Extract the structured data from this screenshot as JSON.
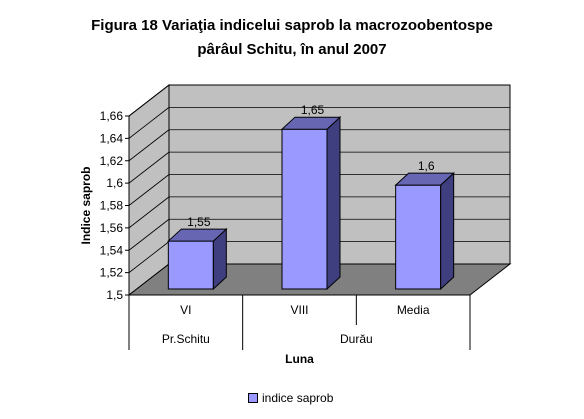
{
  "title_line1": "Figura 18  Variaţia indicelui saprob la macrozoobentospe",
  "title_line2": "pârâul Schitu, în anul 2007",
  "colors": {
    "bar_front": "#9999ff",
    "bar_side": "#3f3f7f",
    "bar_top": "#6666b3",
    "back_wall": "#c0c0c0",
    "floor": "#808080"
  },
  "chart_data": {
    "type": "bar",
    "categories": [
      "VI",
      "VIII",
      "Media"
    ],
    "groups": [
      {
        "label": "Pr.Schitu",
        "categories": [
          "VI"
        ]
      },
      {
        "label": "Durău",
        "categories": [
          "VIII",
          "Media"
        ]
      }
    ],
    "series": [
      {
        "name": "indice saprob",
        "values": [
          1.55,
          1.65,
          1.6
        ]
      }
    ],
    "data_labels": [
      "1,55",
      "1,65",
      "1,6"
    ],
    "ylabel": "Indice saprob",
    "xlabel": "Luna",
    "ylim": [
      1.5,
      1.66
    ],
    "yticks": [
      "1,5",
      "1,52",
      "1,54",
      "1,56",
      "1,58",
      "1,6",
      "1,62",
      "1,64",
      "1,66"
    ],
    "three_d": true,
    "legend_position": "bottom"
  }
}
